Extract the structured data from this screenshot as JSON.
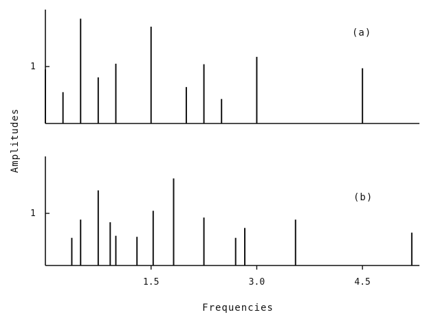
{
  "chart_data": [
    {
      "type": "bar",
      "title": "(a)",
      "xlabel": "",
      "ylabel": "",
      "xlim": [
        0,
        5.25
      ],
      "ylim": [
        0,
        1.85
      ],
      "yticks": [
        1
      ],
      "ytick_labels": [
        "1"
      ],
      "grid": false,
      "x": [
        0.0,
        0.25,
        0.5,
        0.75,
        1.0,
        1.5,
        2.0,
        2.25,
        2.5,
        3.0,
        4.5
      ],
      "values": [
        0.95,
        0.55,
        1.84,
        0.81,
        1.05,
        1.7,
        0.64,
        1.04,
        0.43,
        1.17,
        0.97
      ]
    },
    {
      "type": "bar",
      "title": "(b)",
      "xlabel": "Frequencies",
      "ylabel": "",
      "xlim": [
        0,
        5.25
      ],
      "ylim": [
        0,
        1.85
      ],
      "xticks": [
        1.5,
        3.0,
        4.5
      ],
      "xtick_labels": [
        "1.5",
        "3.0",
        "4.5"
      ],
      "yticks": [
        1
      ],
      "ytick_labels": [
        "1"
      ],
      "grid": false,
      "x": [
        0.375,
        0.5,
        0.75,
        0.92,
        1.0,
        1.3,
        1.53,
        1.82,
        2.25,
        2.7,
        2.83,
        3.55,
        5.2
      ],
      "values": [
        0.53,
        0.88,
        1.44,
        0.83,
        0.57,
        0.55,
        1.05,
        1.67,
        0.92,
        0.53,
        0.72,
        0.88,
        0.63
      ]
    }
  ],
  "shared_ylabel": "Amplitudes",
  "colors": {
    "ink": "#111111",
    "background": "#ffffff"
  }
}
